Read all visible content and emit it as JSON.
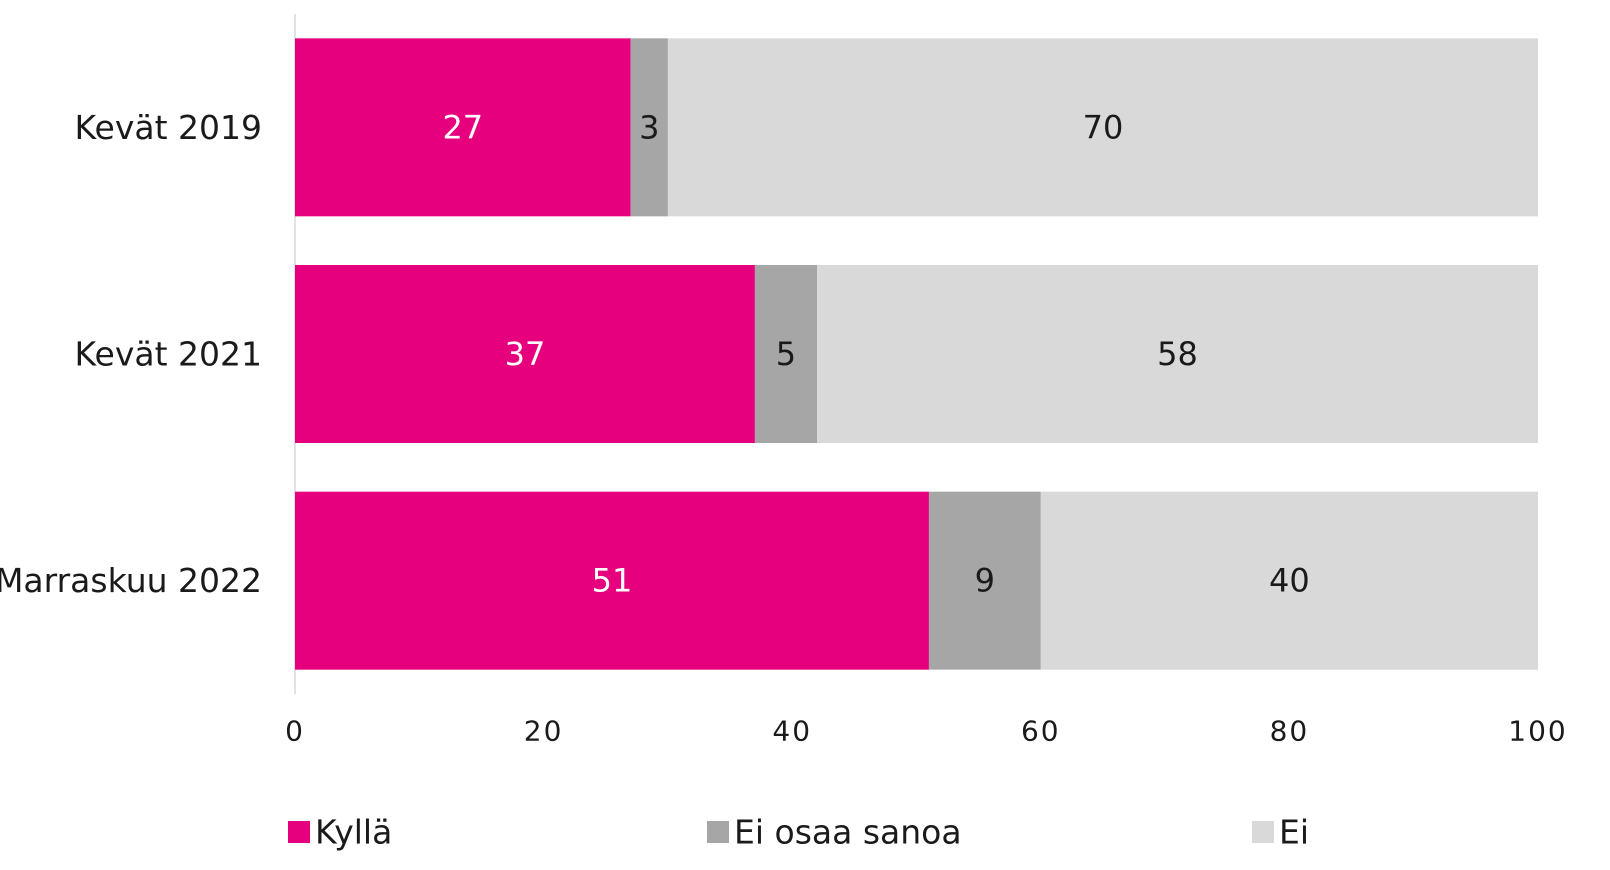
{
  "chart_data": {
    "type": "bar",
    "orientation": "horizontal",
    "stacked": true,
    "categories": [
      "Kevät 2019",
      "Kevät 2021",
      "Marraskuu 2022"
    ],
    "series": [
      {
        "name": "Kyllä",
        "color": "#e6007e",
        "label_color": "#ffffff",
        "values": [
          27,
          37,
          51
        ]
      },
      {
        "name": "Ei osaa sanoa",
        "color": "#a6a6a6",
        "label_color": "#1a1a1a",
        "values": [
          3,
          5,
          9
        ]
      },
      {
        "name": "Ei",
        "color": "#d9d9d9",
        "label_color": "#1a1a1a",
        "values": [
          70,
          58,
          40
        ]
      }
    ],
    "xlim": [
      0,
      100
    ],
    "xticks": [
      0,
      20,
      40,
      60,
      80,
      100
    ],
    "title": "",
    "xlabel": "",
    "ylabel": "",
    "grid": false,
    "legend_position": "bottom"
  }
}
